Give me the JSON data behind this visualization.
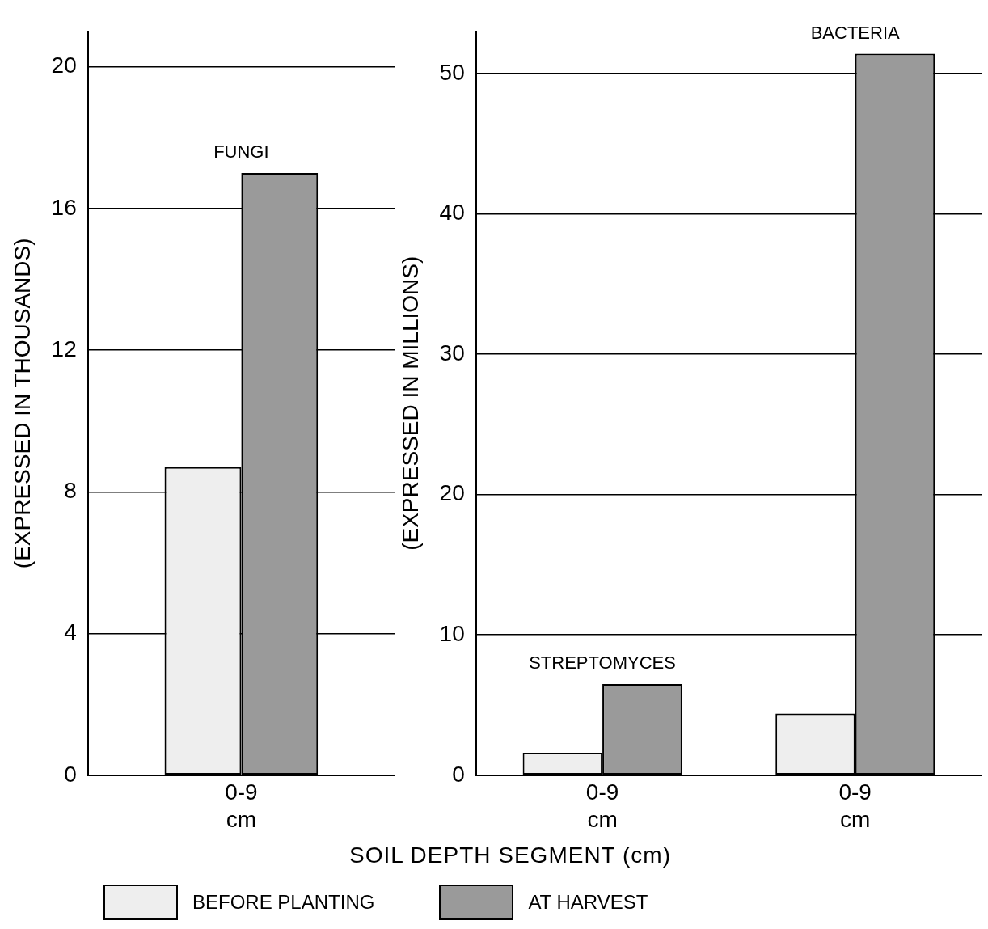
{
  "chart_data": [
    {
      "type": "bar",
      "ylabel": "(EXPRESSED IN THOUSANDS)",
      "xlabel": "SOIL DEPTH SEGMENT (cm)",
      "categories": [
        "0-9\ncm"
      ],
      "ylim": [
        0,
        21
      ],
      "yticks": [
        0,
        4,
        8,
        12,
        16,
        20
      ],
      "grid": "y",
      "legend": "bottom",
      "series": [
        {
          "name": "BEFORE PLANTING",
          "color": "#eeeeee",
          "values": [
            8.7
          ]
        },
        {
          "name": "AT HARVEST",
          "color": "#9a9a9a",
          "values": [
            17.0
          ]
        }
      ],
      "annotations": [
        {
          "text": "FUNGI",
          "x": "0-9\ncm",
          "y": 17.0
        }
      ]
    },
    {
      "type": "bar",
      "ylabel": "(EXPRESSED IN MILLIONS)",
      "categories": [
        "0-9\ncm",
        "0-9\ncm"
      ],
      "ylim": [
        0,
        53
      ],
      "yticks": [
        0,
        10,
        20,
        30,
        40,
        50
      ],
      "grid": "y",
      "series": [
        {
          "color": "#eeeeee",
          "values": [
            1.6,
            4.4
          ]
        },
        {
          "color": "#9a9a9a",
          "values": [
            6.5,
            51.4
          ]
        }
      ],
      "annotations": [
        "STREPTOMYCES",
        "BACTERIA"
      ]
    }
  ]
}
